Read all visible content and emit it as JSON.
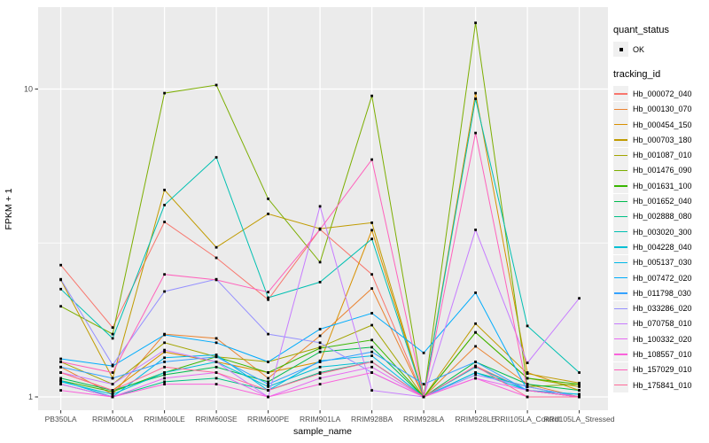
{
  "labels": {
    "x_axis_title": "sample_name",
    "y_axis_title": "FPKM + 1"
  },
  "legend": {
    "quant_status_title": "quant_status",
    "quant_status_items": [
      "OK"
    ],
    "tracking_id_title": "tracking_id"
  },
  "chart_data": {
    "type": "line",
    "title": "",
    "xlabel": "sample_name",
    "ylabel": "FPKM + 1",
    "y_scale": "log10",
    "ylim": [
      0.93,
      18.4
    ],
    "y_major_ticks": [
      {
        "label": "1",
        "value": 1
      },
      {
        "label": "10",
        "value": 10
      }
    ],
    "y_minor_ticks": [
      3.162
    ],
    "grid": true,
    "legend_position": "right",
    "panel_bg": "#EBEBEB",
    "gridline_color": "#FFFFFF",
    "point_color": "#000000",
    "categories": [
      "PB350LA",
      "RRIM600LA",
      "RRIM600LE",
      "RRIM600SE",
      "RRIM600PE",
      "RRIM901LA",
      "RRIM928BA",
      "RRIM928LA",
      "RRIM928LE",
      "RRII105LA_Control",
      "RRII105LA_Stressed"
    ],
    "series": [
      {
        "name": "Hb_000072_040",
        "color": "#F8766D",
        "values": [
          2.68,
          1.68,
          3.7,
          2.83,
          2.07,
          3.5,
          2.5,
          1.0,
          1.26,
          1.05,
          1.0
        ]
      },
      {
        "name": "Hb_000130_070",
        "color": "#EA8331",
        "values": [
          1.25,
          1.02,
          1.6,
          1.55,
          1.15,
          1.58,
          2.25,
          1.0,
          1.46,
          1.1,
          1.0
        ]
      },
      {
        "name": "Hb_000454_150",
        "color": "#D89000",
        "values": [
          1.2,
          1.05,
          1.4,
          1.3,
          1.2,
          1.3,
          3.48,
          1.0,
          9.7,
          1.2,
          1.05
        ]
      },
      {
        "name": "Hb_000703_180",
        "color": "#C09B00",
        "values": [
          2.4,
          1.15,
          4.7,
          3.06,
          3.93,
          3.52,
          3.68,
          1.0,
          1.73,
          1.19,
          1.11
        ]
      },
      {
        "name": "Hb_001087_010",
        "color": "#A3A500",
        "values": [
          1.3,
          1.1,
          1.5,
          1.35,
          1.3,
          1.45,
          1.71,
          1.0,
          1.62,
          1.15,
          1.08
        ]
      },
      {
        "name": "Hb_001476_090",
        "color": "#7CAE00",
        "values": [
          1.97,
          1.6,
          9.7,
          10.3,
          4.4,
          2.74,
          9.5,
          1.0,
          16.4,
          1.08,
          1.1
        ]
      },
      {
        "name": "Hb_001631_100",
        "color": "#39B600",
        "values": [
          1.13,
          1.04,
          1.2,
          1.35,
          1.2,
          1.44,
          1.53,
          1.0,
          1.62,
          1.15,
          1.1
        ]
      },
      {
        "name": "Hb_001652_040",
        "color": "#00BB4E",
        "values": [
          1.15,
          1.05,
          1.18,
          1.25,
          1.12,
          1.4,
          1.45,
          1.0,
          1.3,
          1.1,
          1.05
        ]
      },
      {
        "name": "Hb_002888_080",
        "color": "#00C087",
        "values": [
          1.1,
          1.0,
          1.12,
          1.15,
          1.05,
          1.2,
          1.3,
          1.0,
          1.2,
          1.08,
          1.0
        ]
      },
      {
        "name": "Hb_003020_300",
        "color": "#00C0B2",
        "values": [
          2.24,
          1.55,
          4.2,
          6.0,
          2.1,
          2.36,
          3.26,
          1.0,
          9.3,
          1.7,
          1.2
        ]
      },
      {
        "name": "Hb_004228_040",
        "color": "#00BFD4",
        "values": [
          1.12,
          1.02,
          1.2,
          1.3,
          1.08,
          1.25,
          1.3,
          1.0,
          1.25,
          1.05,
          1.02
        ]
      },
      {
        "name": "Hb_005137_030",
        "color": "#00B8E7",
        "values": [
          1.13,
          1.0,
          1.34,
          1.37,
          1.05,
          1.31,
          1.36,
          1.0,
          1.2,
          1.05,
          1.02
        ]
      },
      {
        "name": "Hb_007472_020",
        "color": "#00ACFC",
        "values": [
          1.33,
          1.26,
          1.59,
          1.5,
          1.3,
          1.66,
          1.87,
          1.39,
          2.18,
          1.05,
          1.0
        ]
      },
      {
        "name": "Hb_011798_030",
        "color": "#35A2FF",
        "values": [
          1.25,
          1.15,
          1.3,
          1.35,
          1.1,
          1.3,
          1.4,
          1.1,
          1.3,
          1.05,
          1.0
        ]
      },
      {
        "name": "Hb_033286_020",
        "color": "#9590FF",
        "values": [
          2.41,
          1.27,
          2.2,
          2.41,
          1.6,
          1.5,
          1.2,
          1.0,
          1.18,
          1.08,
          1.0
        ]
      },
      {
        "name": "Hb_070758_010",
        "color": "#C77CFF",
        "values": [
          1.2,
          1.1,
          1.42,
          1.3,
          1.0,
          4.16,
          1.05,
          1.0,
          3.49,
          1.29,
          2.09
        ]
      },
      {
        "name": "Hb_100332_020",
        "color": "#E76BF3",
        "values": [
          1.1,
          1.0,
          1.15,
          1.2,
          1.0,
          1.15,
          1.25,
          1.0,
          1.15,
          1.05,
          1.0
        ]
      },
      {
        "name": "Hb_108557_010",
        "color": "#FA62DB",
        "values": [
          1.05,
          1.0,
          1.1,
          1.1,
          1.0,
          1.1,
          1.2,
          1.0,
          1.15,
          1.0,
          1.0
        ]
      },
      {
        "name": "Hb_157029_010",
        "color": "#FF62BC",
        "values": [
          1.3,
          1.2,
          2.5,
          2.4,
          2.19,
          3.5,
          5.9,
          1.0,
          7.2,
          1.05,
          1.0
        ]
      },
      {
        "name": "Hb_175841_010",
        "color": "#FF6A98",
        "values": [
          1.2,
          1.05,
          1.25,
          1.2,
          1.05,
          1.19,
          1.3,
          1.0,
          1.26,
          1.0,
          1.0
        ]
      }
    ]
  }
}
